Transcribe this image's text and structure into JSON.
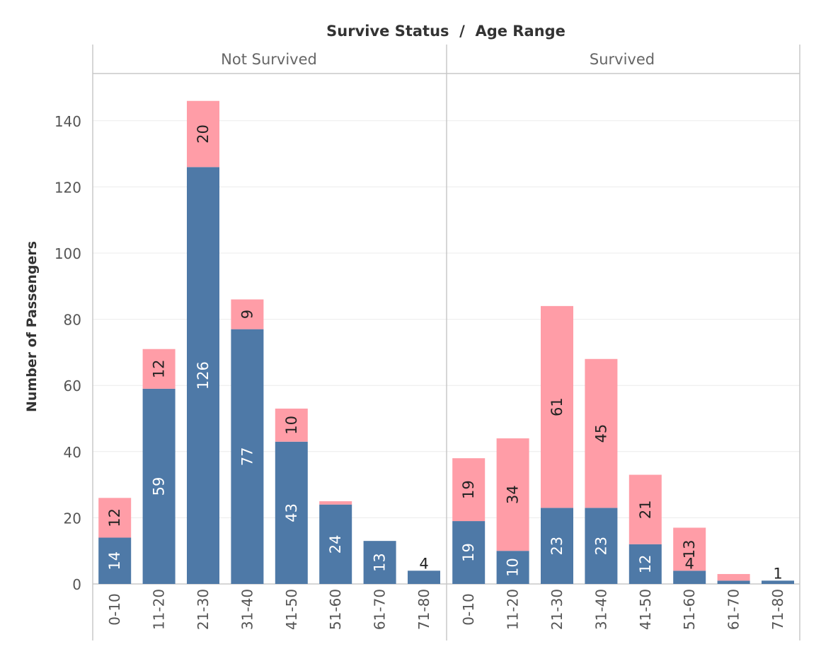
{
  "chart_data": {
    "type": "bar",
    "stacked": true,
    "orientation": "vertical",
    "title": "Survive Status  /  Age Range",
    "ylabel": "Number of Passengers",
    "xlabel": "",
    "ylim": [
      0,
      150
    ],
    "yticks": [
      0,
      20,
      40,
      60,
      80,
      100,
      120,
      140
    ],
    "grid": true,
    "legend": "none",
    "colors": {
      "bottom": "#4e79a7",
      "top": "#ff9da7"
    },
    "panels": [
      {
        "title": "Not Survived",
        "categories": [
          "0-10",
          "11-20",
          "21-30",
          "31-40",
          "41-50",
          "51-60",
          "61-70",
          "71-80"
        ],
        "series": [
          {
            "color": "#4e79a7",
            "values": [
              14,
              59,
              126,
              77,
              43,
              24,
              13,
              4
            ]
          },
          {
            "color": "#ff9da7",
            "values": [
              12,
              12,
              20,
              9,
              10,
              1,
              0,
              0
            ]
          }
        ],
        "labels": [
          [
            "14",
            "59",
            "126",
            "77",
            "43",
            "24",
            "13",
            "4"
          ],
          [
            "12",
            "12",
            "20",
            "9",
            "10",
            "",
            "",
            ""
          ]
        ]
      },
      {
        "title": "Survived",
        "categories": [
          "0-10",
          "11-20",
          "21-30",
          "31-40",
          "41-50",
          "51-60",
          "61-70",
          "71-80"
        ],
        "series": [
          {
            "color": "#4e79a7",
            "values": [
              19,
              10,
              23,
              23,
              12,
              4,
              1,
              1
            ]
          },
          {
            "color": "#ff9da7",
            "values": [
              19,
              34,
              61,
              45,
              21,
              13,
              2,
              0
            ]
          }
        ],
        "labels": [
          [
            "19",
            "10",
            "23",
            "23",
            "12",
            "4",
            "",
            "1"
          ],
          [
            "19",
            "34",
            "61",
            "45",
            "21",
            "13",
            "",
            ""
          ]
        ]
      }
    ]
  }
}
